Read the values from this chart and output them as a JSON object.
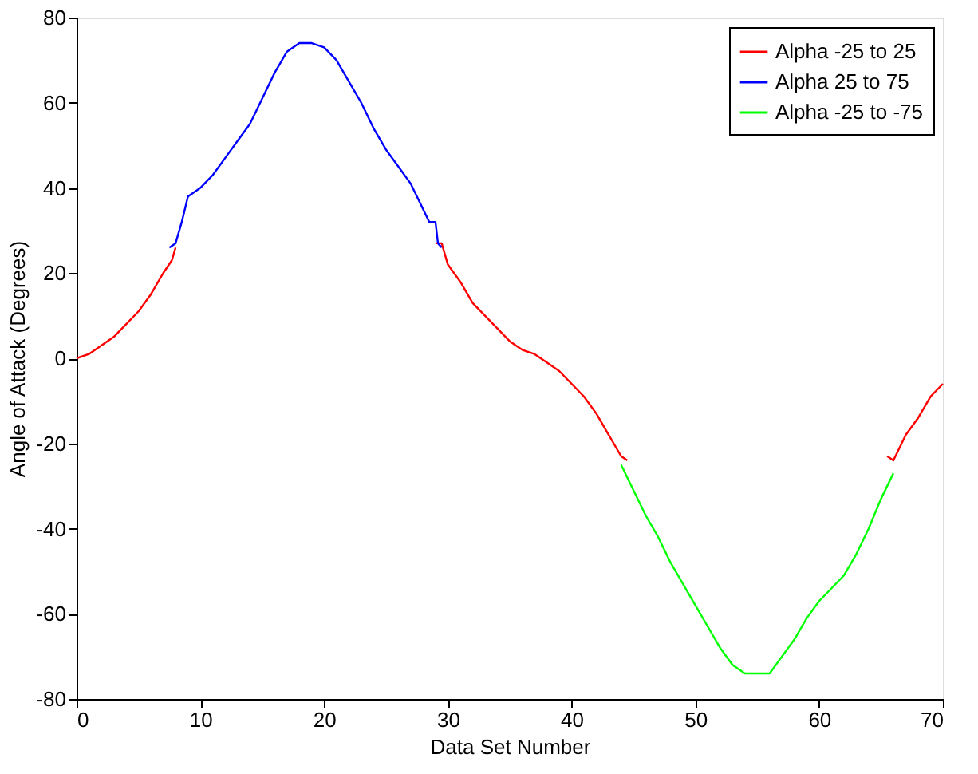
{
  "chart_data": {
    "type": "line",
    "xlabel": "Data Set Number",
    "ylabel": "Angle of Attack (Degrees)",
    "xlim": [
      0,
      70
    ],
    "xticks": [
      0,
      10,
      20,
      30,
      40,
      50,
      60,
      70
    ],
    "ylim": [
      -80,
      80
    ],
    "yticks": [
      -80,
      -60,
      -40,
      -20,
      0,
      20,
      40,
      60,
      80
    ],
    "grid": false,
    "legend": "top right",
    "marker": "none",
    "line_style": "solid",
    "series": [
      {
        "name": "Alpha -25 to 25",
        "color": "#ff0000",
        "x": [
          0,
          1,
          2,
          3,
          4,
          5,
          6,
          7,
          7.7,
          8,
          18,
          29,
          29.5,
          30,
          31,
          32,
          33,
          34,
          35,
          36,
          37,
          38,
          39,
          40,
          41,
          42,
          43,
          44,
          44.5,
          55,
          65.5,
          66,
          67,
          68,
          69,
          70
        ],
        "values": [
          0,
          1,
          3,
          5,
          8,
          11,
          15,
          20,
          23,
          26,
          null,
          27,
          27,
          22,
          18,
          13,
          10,
          7,
          4,
          2,
          1,
          -1,
          -3,
          -6,
          -9,
          -13,
          -18,
          -23,
          -24,
          null,
          -23,
          -24,
          -18,
          -14,
          -9,
          -6
        ]
      },
      {
        "name": "Alpha 25 to 75",
        "color": "#0000ff",
        "x": [
          7.5,
          8,
          8.5,
          9,
          10,
          11,
          12,
          13,
          14,
          15,
          16,
          17,
          18,
          19,
          20,
          21,
          22,
          23,
          24,
          25,
          26,
          27,
          28,
          28.5,
          29,
          29.2,
          29.5
        ],
        "values": [
          26,
          27,
          32,
          38,
          40,
          43,
          47,
          51,
          55,
          61,
          67,
          72,
          74,
          74,
          73,
          70,
          65,
          60,
          54,
          49,
          45,
          41,
          35,
          32,
          32,
          27,
          26
        ]
      },
      {
        "name": "Alpha -25 to -75",
        "color": "#00ff00",
        "x": [
          44,
          45,
          46,
          47,
          48,
          49,
          50,
          51,
          52,
          53,
          54,
          55,
          56,
          57,
          58,
          59,
          60,
          61,
          62,
          63,
          64,
          65,
          66
        ],
        "values": [
          -25,
          -31,
          -37,
          -42,
          -48,
          -53,
          -58,
          -63,
          -68,
          -72,
          -74,
          -74,
          -74,
          -70,
          -66,
          -61,
          -57,
          -54,
          -51,
          -46,
          -40,
          -33,
          -27
        ]
      }
    ]
  }
}
